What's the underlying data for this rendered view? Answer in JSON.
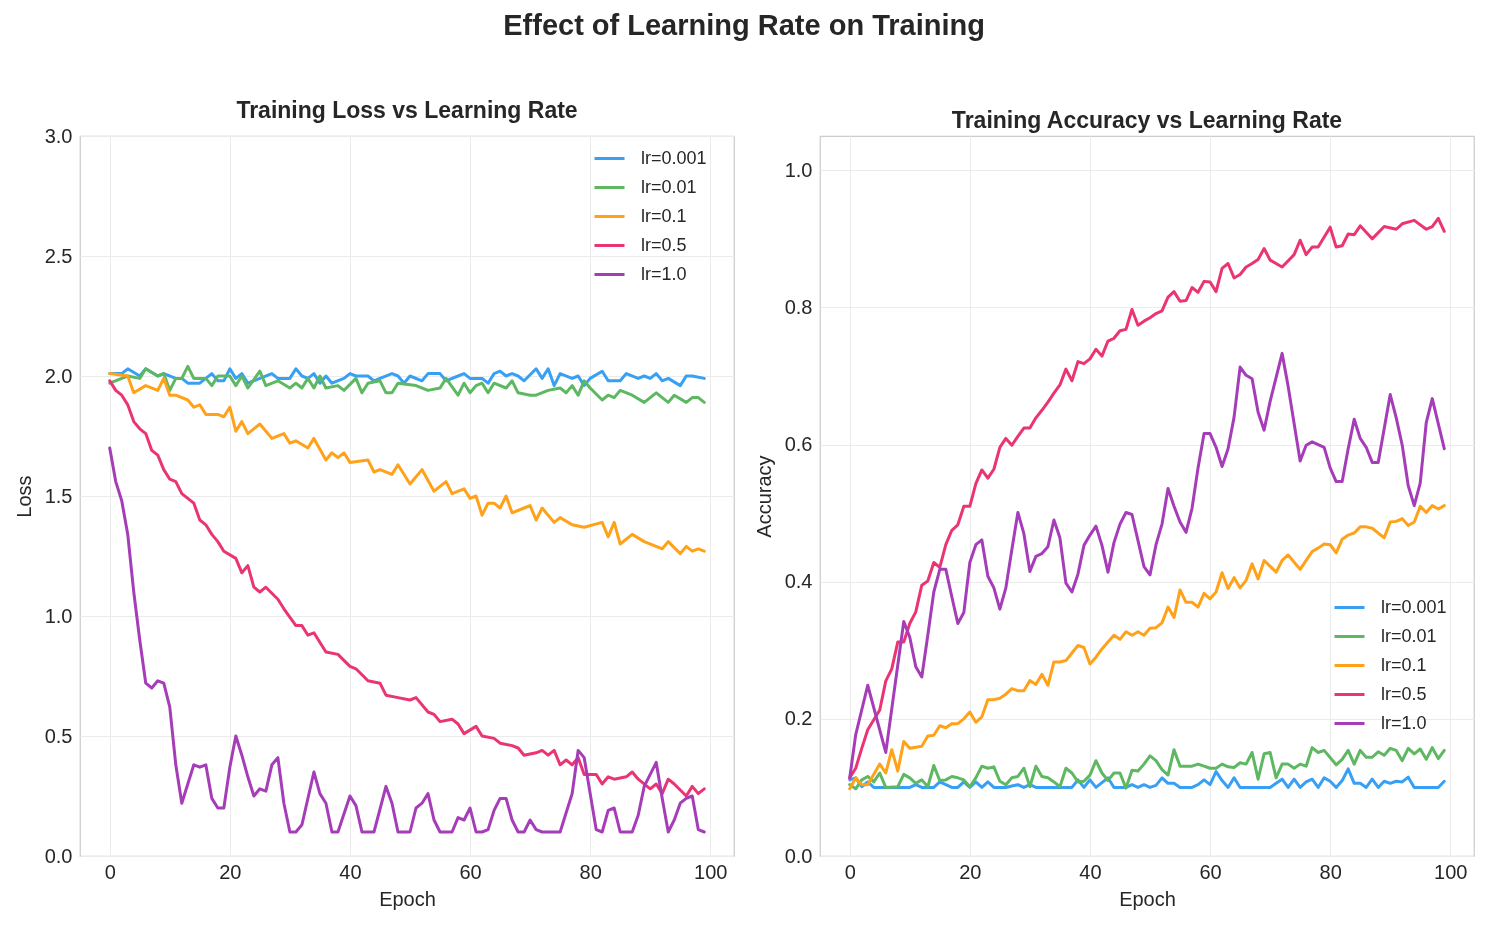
{
  "chart_data": [
    {
      "type": "other",
      "title": "Effect of Learning Rate on Training"
    },
    {
      "type": "line",
      "title": "Training Loss vs Learning Rate",
      "xlabel": "Epoch",
      "ylabel": "Loss",
      "xlim": [
        -4.95,
        103.95
      ],
      "xticks": [
        0,
        20,
        40,
        60,
        80,
        100
      ],
      "ylim": [
        0,
        3
      ],
      "yticks": [
        {
          "value": 0,
          "label": "0.0"
        },
        0.5,
        {
          "value": 1,
          "label": "1.0"
        },
        1.5,
        {
          "value": 2,
          "label": "2.0"
        },
        2.5,
        {
          "value": 3,
          "label": "3.0"
        }
      ],
      "grid": true,
      "legend": "top right",
      "series": [
        {
          "name": "lr=0.001",
          "color": "#37a0f4",
          "x": [
            0,
            2,
            3,
            5,
            6,
            8,
            9,
            11,
            12,
            13,
            15,
            16,
            17,
            18,
            19,
            20,
            21,
            22,
            23,
            25,
            27,
            28,
            30,
            31,
            32,
            33,
            34,
            35,
            36,
            37,
            39,
            40,
            41,
            43,
            44,
            45,
            47,
            48,
            49,
            50,
            52,
            53,
            55,
            56,
            58,
            59,
            60,
            62,
            63,
            64,
            65,
            66,
            67,
            68,
            69,
            71,
            72,
            73,
            74,
            75,
            77,
            78,
            79,
            80,
            82,
            83,
            85,
            86,
            88,
            89,
            90,
            91,
            92,
            93,
            95,
            96,
            97,
            99
          ],
          "values": [
            2.01,
            2.01,
            2.03,
            2.0,
            2.03,
            2.0,
            2.01,
            1.99,
            1.99,
            1.97,
            1.97,
            1.99,
            2.01,
            1.98,
            1.98,
            2.03,
            1.99,
            2.01,
            1.97,
            1.99,
            2.01,
            1.99,
            1.99,
            2.03,
            2.0,
            1.99,
            2.01,
            1.97,
            2.0,
            1.97,
            1.99,
            2.01,
            2.0,
            2.0,
            1.98,
            1.99,
            2.01,
            2.0,
            1.97,
            2.0,
            1.98,
            2.01,
            2.01,
            1.98,
            2.0,
            2.01,
            1.99,
            1.99,
            1.97,
            2.01,
            2.02,
            2.0,
            2.01,
            2.0,
            1.98,
            2.03,
            1.99,
            2.03,
            1.96,
            2.01,
            1.99,
            2.0,
            1.96,
            1.99,
            2.02,
            1.98,
            1.98,
            2.01,
            1.99,
            2.0,
            1.99,
            2.01,
            1.98,
            1.99,
            1.96,
            2.0,
            2.0,
            1.99
          ]
        },
        {
          "name": "lr=0.01",
          "color": "#5eb761",
          "x": [
            0,
            2,
            3,
            5,
            6,
            8,
            9,
            10,
            11,
            12,
            13,
            14,
            16,
            17,
            18,
            20,
            21,
            22,
            23,
            25,
            26,
            28,
            30,
            31,
            32,
            33,
            34,
            35,
            36,
            38,
            39,
            41,
            42,
            43,
            45,
            46,
            47,
            48,
            51,
            53,
            55,
            56,
            58,
            59,
            60,
            61,
            62,
            63,
            64,
            66,
            67,
            68,
            70,
            71,
            73,
            75,
            76,
            77,
            78,
            79,
            80,
            82,
            83,
            84,
            85,
            87,
            89,
            91,
            93,
            94,
            96,
            97,
            98,
            99
          ],
          "values": [
            1.97,
            1.99,
            2.0,
            1.99,
            2.03,
            2.0,
            2.01,
            1.94,
            1.99,
            1.99,
            2.04,
            1.99,
            1.99,
            1.96,
            2.0,
            2.0,
            1.96,
            2.0,
            1.95,
            2.02,
            1.96,
            1.98,
            1.95,
            1.97,
            1.95,
            1.99,
            1.95,
            2.0,
            1.95,
            1.96,
            1.94,
            1.99,
            1.93,
            1.97,
            1.98,
            1.93,
            1.93,
            1.97,
            1.96,
            1.94,
            1.95,
            1.99,
            1.92,
            1.97,
            1.93,
            1.96,
            1.97,
            1.93,
            1.97,
            1.95,
            1.98,
            1.93,
            1.92,
            1.92,
            1.94,
            1.95,
            1.93,
            1.96,
            1.92,
            1.98,
            1.95,
            1.9,
            1.92,
            1.91,
            1.94,
            1.92,
            1.89,
            1.93,
            1.89,
            1.92,
            1.89,
            1.91,
            1.91,
            1.89
          ]
        },
        {
          "name": "lr=0.1",
          "color": "#ffa21a",
          "x": [
            0,
            3,
            4,
            6,
            8,
            9,
            10,
            11,
            13,
            14,
            15,
            16,
            18,
            19,
            20,
            21,
            22,
            23,
            25,
            27,
            29,
            30,
            31,
            33,
            34,
            36,
            37,
            38,
            39,
            40,
            43,
            44,
            45,
            47,
            48,
            50,
            52,
            54,
            56,
            57,
            59,
            60,
            61,
            62,
            63,
            64,
            65,
            66,
            67,
            69,
            70,
            71,
            72,
            74,
            75,
            77,
            79,
            82,
            83,
            84,
            85,
            87,
            89,
            92,
            93,
            95,
            96,
            97,
            98,
            99
          ],
          "values": [
            2.01,
            2.0,
            1.93,
            1.96,
            1.94,
            1.99,
            1.92,
            1.92,
            1.9,
            1.87,
            1.88,
            1.84,
            1.84,
            1.83,
            1.87,
            1.77,
            1.81,
            1.76,
            1.8,
            1.74,
            1.76,
            1.72,
            1.73,
            1.7,
            1.74,
            1.65,
            1.68,
            1.66,
            1.68,
            1.64,
            1.65,
            1.6,
            1.61,
            1.59,
            1.63,
            1.55,
            1.61,
            1.52,
            1.56,
            1.51,
            1.53,
            1.49,
            1.5,
            1.42,
            1.47,
            1.47,
            1.45,
            1.5,
            1.43,
            1.45,
            1.46,
            1.4,
            1.45,
            1.39,
            1.41,
            1.38,
            1.37,
            1.39,
            1.33,
            1.39,
            1.3,
            1.34,
            1.31,
            1.28,
            1.31,
            1.26,
            1.29,
            1.27,
            1.28,
            1.27
          ]
        },
        {
          "name": "lr=0.5",
          "color": "#eb3473",
          "x": [
            0,
            1,
            2,
            3,
            4,
            5,
            6,
            7,
            8,
            9,
            10,
            11,
            12,
            14,
            15,
            16,
            17,
            18,
            19,
            21,
            22,
            23,
            24,
            25,
            26,
            28,
            29,
            31,
            32,
            33,
            34,
            36,
            38,
            40,
            41,
            43,
            45,
            46,
            48,
            50,
            51,
            53,
            54,
            55,
            57,
            58,
            59,
            61,
            62,
            64,
            65,
            67,
            68,
            69,
            71,
            72,
            73,
            74,
            75,
            76,
            77,
            78,
            79,
            81,
            82,
            83,
            84,
            86,
            87,
            88,
            90,
            91,
            92,
            93,
            94,
            96,
            97,
            98,
            99
          ],
          "values": [
            1.98,
            1.94,
            1.92,
            1.88,
            1.81,
            1.78,
            1.76,
            1.69,
            1.67,
            1.61,
            1.57,
            1.56,
            1.51,
            1.47,
            1.4,
            1.38,
            1.34,
            1.31,
            1.27,
            1.24,
            1.18,
            1.21,
            1.12,
            1.1,
            1.12,
            1.07,
            1.03,
            0.96,
            0.96,
            0.92,
            0.93,
            0.85,
            0.84,
            0.79,
            0.78,
            0.73,
            0.72,
            0.67,
            0.66,
            0.65,
            0.66,
            0.6,
            0.59,
            0.56,
            0.57,
            0.55,
            0.51,
            0.54,
            0.5,
            0.49,
            0.47,
            0.46,
            0.45,
            0.42,
            0.43,
            0.44,
            0.42,
            0.44,
            0.38,
            0.4,
            0.38,
            0.41,
            0.34,
            0.34,
            0.3,
            0.33,
            0.32,
            0.33,
            0.35,
            0.32,
            0.28,
            0.3,
            0.26,
            0.32,
            0.3,
            0.25,
            0.29,
            0.26,
            0.28
          ]
        },
        {
          "name": "lr=1.0",
          "color": "#a63db8",
          "x": [
            0,
            1,
            2,
            3,
            4,
            5,
            6,
            7,
            8,
            9,
            10,
            11,
            12,
            13,
            14,
            15,
            16,
            17,
            18,
            19,
            20,
            21,
            22,
            23,
            24,
            25,
            26,
            27,
            28,
            29,
            30,
            31,
            32,
            34,
            35,
            36,
            37,
            38,
            40,
            41,
            42,
            44,
            46,
            47,
            48,
            50,
            51,
            52,
            53,
            54,
            55,
            57,
            58,
            59,
            60,
            61,
            62,
            63,
            64,
            65,
            66,
            67,
            68,
            69,
            70,
            71,
            72,
            75,
            76,
            77,
            78,
            79,
            80,
            81,
            82,
            83,
            84,
            85,
            87,
            88,
            89,
            90,
            91,
            92,
            93,
            94,
            95,
            96,
            97,
            98,
            99
          ],
          "values": [
            1.7,
            1.56,
            1.48,
            1.34,
            1.1,
            0.9,
            0.72,
            0.7,
            0.73,
            0.72,
            0.62,
            0.38,
            0.22,
            0.3,
            0.38,
            0.37,
            0.38,
            0.24,
            0.2,
            0.2,
            0.37,
            0.5,
            0.42,
            0.33,
            0.25,
            0.28,
            0.27,
            0.38,
            0.41,
            0.22,
            0.1,
            0.1,
            0.13,
            0.35,
            0.26,
            0.22,
            0.1,
            0.1,
            0.25,
            0.21,
            0.1,
            0.1,
            0.29,
            0.22,
            0.1,
            0.1,
            0.2,
            0.22,
            0.26,
            0.15,
            0.1,
            0.1,
            0.16,
            0.15,
            0.2,
            0.1,
            0.1,
            0.11,
            0.19,
            0.24,
            0.24,
            0.15,
            0.1,
            0.1,
            0.15,
            0.11,
            0.1,
            0.1,
            0.18,
            0.26,
            0.44,
            0.41,
            0.26,
            0.11,
            0.1,
            0.19,
            0.2,
            0.1,
            0.1,
            0.17,
            0.29,
            0.34,
            0.39,
            0.24,
            0.1,
            0.15,
            0.22,
            0.24,
            0.25,
            0.11,
            0.1
          ]
        }
      ]
    },
    {
      "type": "line",
      "title": "Training Accuracy vs Learning Rate",
      "xlabel": "Epoch",
      "ylabel": "Accuracy",
      "xlim": [
        -4.95,
        103.95
      ],
      "xticks": [
        0,
        20,
        40,
        60,
        80,
        100
      ],
      "ylim": [
        0,
        1.05
      ],
      "yticks": [
        {
          "value": 0,
          "label": "0.0"
        },
        0.2,
        0.4,
        0.6,
        0.8,
        {
          "value": 1,
          "label": "1.0"
        }
      ],
      "grid": true,
      "legend": "bottom right",
      "series": [
        {
          "name": "lr=0.001",
          "color": "#37a0f4",
          "x": [
            0,
            1,
            2,
            3,
            4,
            8,
            10,
            11,
            12,
            14,
            15,
            16,
            17,
            18,
            19,
            20,
            21,
            22,
            23,
            24,
            26,
            27,
            28,
            29,
            30,
            31,
            34,
            37,
            38,
            39,
            40,
            41,
            43,
            44,
            46,
            47,
            48,
            49,
            50,
            51,
            52,
            53,
            54,
            55,
            57,
            58,
            59,
            60,
            61,
            62,
            63,
            64,
            65,
            70,
            71,
            72,
            73,
            74,
            75,
            76,
            77,
            78,
            79,
            80,
            81,
            82,
            83,
            84,
            85,
            86,
            87,
            88,
            89,
            90,
            91,
            92,
            93,
            94,
            98,
            99
          ],
          "values": [
            0.111,
            0.114,
            0.101,
            0.108,
            0.1,
            0.1,
            0.1,
            0.104,
            0.1,
            0.1,
            0.108,
            0.104,
            0.1,
            0.1,
            0.108,
            0.1,
            0.108,
            0.1,
            0.108,
            0.1,
            0.1,
            0.102,
            0.104,
            0.1,
            0.104,
            0.1,
            0.1,
            0.1,
            0.111,
            0.1,
            0.111,
            0.1,
            0.114,
            0.1,
            0.1,
            0.104,
            0.1,
            0.104,
            0.1,
            0.103,
            0.114,
            0.106,
            0.106,
            0.1,
            0.1,
            0.104,
            0.111,
            0.104,
            0.123,
            0.11,
            0.1,
            0.114,
            0.1,
            0.1,
            0.106,
            0.112,
            0.1,
            0.112,
            0.1,
            0.108,
            0.112,
            0.1,
            0.114,
            0.109,
            0.1,
            0.11,
            0.127,
            0.106,
            0.106,
            0.1,
            0.112,
            0.1,
            0.109,
            0.106,
            0.109,
            0.108,
            0.115,
            0.1,
            0.1,
            0.109
          ]
        },
        {
          "name": "lr=0.01",
          "color": "#5eb761",
          "x": [
            0,
            1,
            2,
            3,
            4,
            5,
            6,
            8,
            9,
            10,
            11,
            12,
            13,
            14,
            15,
            16,
            17,
            18,
            19,
            20,
            21,
            22,
            23,
            24,
            25,
            26,
            27,
            28,
            29,
            30,
            31,
            32,
            33,
            34,
            35,
            36,
            37,
            38,
            39,
            40,
            41,
            42,
            43,
            44,
            45,
            46,
            47,
            48,
            49,
            50,
            51,
            52,
            53,
            54,
            55,
            56,
            57,
            58,
            59,
            60,
            61,
            62,
            63,
            64,
            65,
            66,
            67,
            68,
            69,
            70,
            71,
            72,
            73,
            74,
            75,
            76,
            77,
            78,
            79,
            81,
            82,
            83,
            84,
            85,
            86,
            87,
            88,
            89,
            90,
            91,
            92,
            93,
            94,
            95,
            96,
            97,
            98,
            99
          ],
          "values": [
            0.104,
            0.098,
            0.111,
            0.116,
            0.108,
            0.121,
            0.1,
            0.101,
            0.119,
            0.114,
            0.106,
            0.111,
            0.101,
            0.132,
            0.11,
            0.111,
            0.116,
            0.114,
            0.111,
            0.101,
            0.114,
            0.131,
            0.128,
            0.13,
            0.109,
            0.104,
            0.114,
            0.116,
            0.128,
            0.101,
            0.131,
            0.116,
            0.114,
            0.108,
            0.101,
            0.128,
            0.121,
            0.108,
            0.109,
            0.118,
            0.139,
            0.121,
            0.11,
            0.121,
            0.121,
            0.099,
            0.125,
            0.124,
            0.134,
            0.146,
            0.139,
            0.126,
            0.118,
            0.155,
            0.131,
            0.131,
            0.131,
            0.134,
            0.131,
            0.128,
            0.128,
            0.134,
            0.13,
            0.129,
            0.136,
            0.134,
            0.151,
            0.112,
            0.149,
            0.151,
            0.114,
            0.134,
            0.134,
            0.128,
            0.134,
            0.131,
            0.158,
            0.151,
            0.154,
            0.133,
            0.141,
            0.154,
            0.134,
            0.154,
            0.144,
            0.144,
            0.152,
            0.147,
            0.157,
            0.154,
            0.139,
            0.157,
            0.149,
            0.156,
            0.141,
            0.158,
            0.142,
            0.154
          ]
        },
        {
          "name": "lr=0.1",
          "color": "#ffa21a",
          "x": [
            0,
            1,
            2,
            3,
            5,
            6,
            7,
            8,
            9,
            10,
            12,
            13,
            14,
            15,
            16,
            17,
            18,
            19,
            20,
            21,
            22,
            23,
            24,
            25,
            26,
            27,
            28,
            29,
            30,
            31,
            32,
            33,
            34,
            35,
            36,
            37,
            38,
            39,
            40,
            41,
            42,
            43,
            44,
            45,
            46,
            47,
            48,
            49,
            50,
            51,
            52,
            53,
            54,
            55,
            56,
            57,
            58,
            59,
            60,
            61,
            62,
            63,
            64,
            65,
            66,
            67,
            68,
            69,
            71,
            72,
            73,
            75,
            76,
            77,
            78,
            79,
            80,
            81,
            82,
            83,
            84,
            85,
            86,
            87,
            89,
            90,
            91,
            92,
            93,
            94,
            95,
            96,
            97,
            98,
            99
          ],
          "values": [
            0.098,
            0.114,
            0.104,
            0.104,
            0.134,
            0.121,
            0.155,
            0.124,
            0.167,
            0.157,
            0.16,
            0.175,
            0.176,
            0.19,
            0.187,
            0.193,
            0.193,
            0.2,
            0.21,
            0.195,
            0.203,
            0.228,
            0.228,
            0.23,
            0.236,
            0.244,
            0.241,
            0.241,
            0.256,
            0.25,
            0.265,
            0.249,
            0.283,
            0.283,
            0.285,
            0.296,
            0.307,
            0.304,
            0.28,
            0.29,
            0.302,
            0.312,
            0.322,
            0.316,
            0.327,
            0.322,
            0.327,
            0.322,
            0.332,
            0.333,
            0.34,
            0.363,
            0.348,
            0.388,
            0.37,
            0.37,
            0.363,
            0.383,
            0.375,
            0.385,
            0.413,
            0.39,
            0.406,
            0.391,
            0.402,
            0.426,
            0.404,
            0.431,
            0.414,
            0.431,
            0.439,
            0.418,
            0.431,
            0.444,
            0.449,
            0.455,
            0.454,
            0.442,
            0.462,
            0.468,
            0.471,
            0.48,
            0.48,
            0.478,
            0.464,
            0.487,
            0.488,
            0.492,
            0.482,
            0.487,
            0.51,
            0.501,
            0.511,
            0.506,
            0.511
          ]
        },
        {
          "name": "lr=0.5",
          "color": "#eb3473",
          "x": [
            0,
            1,
            2,
            3,
            5,
            6,
            7,
            8,
            9,
            10,
            11,
            12,
            13,
            14,
            15,
            16,
            17,
            18,
            19,
            20,
            21,
            22,
            23,
            24,
            25,
            26,
            27,
            28,
            29,
            30,
            31,
            32,
            33,
            34,
            35,
            36,
            37,
            38,
            39,
            40,
            41,
            42,
            43,
            44,
            45,
            46,
            47,
            48,
            49,
            50,
            51,
            52,
            53,
            54,
            55,
            56,
            57,
            58,
            59,
            60,
            61,
            62,
            63,
            64,
            65,
            66,
            67,
            68,
            69,
            70,
            72,
            74,
            75,
            76,
            77,
            78,
            80,
            81,
            82,
            83,
            84,
            85,
            87,
            89,
            91,
            92,
            94,
            96,
            97,
            98,
            99
          ],
          "values": [
            0.114,
            0.128,
            0.157,
            0.184,
            0.213,
            0.255,
            0.273,
            0.312,
            0.312,
            0.339,
            0.356,
            0.395,
            0.401,
            0.428,
            0.421,
            0.454,
            0.475,
            0.483,
            0.51,
            0.51,
            0.543,
            0.563,
            0.551,
            0.564,
            0.596,
            0.609,
            0.599,
            0.612,
            0.624,
            0.624,
            0.639,
            0.65,
            0.662,
            0.675,
            0.687,
            0.71,
            0.693,
            0.721,
            0.718,
            0.725,
            0.739,
            0.729,
            0.751,
            0.755,
            0.766,
            0.768,
            0.797,
            0.774,
            0.78,
            0.785,
            0.791,
            0.795,
            0.815,
            0.823,
            0.809,
            0.81,
            0.829,
            0.822,
            0.838,
            0.837,
            0.823,
            0.857,
            0.864,
            0.843,
            0.848,
            0.859,
            0.864,
            0.87,
            0.886,
            0.869,
            0.859,
            0.877,
            0.898,
            0.877,
            0.888,
            0.888,
            0.917,
            0.888,
            0.89,
            0.907,
            0.906,
            0.919,
            0.9,
            0.918,
            0.914,
            0.922,
            0.927,
            0.914,
            0.918,
            0.93,
            0.911
          ]
        },
        {
          "name": "lr=1.0",
          "color": "#a63db8",
          "x": [
            0,
            1,
            3,
            6,
            9,
            10,
            11,
            12,
            13,
            14,
            15,
            16,
            17,
            18,
            19,
            20,
            21,
            22,
            23,
            24,
            25,
            26,
            27,
            28,
            29,
            30,
            31,
            32,
            33,
            34,
            35,
            36,
            37,
            38,
            39,
            40,
            41,
            42,
            43,
            44,
            45,
            46,
            47,
            48,
            49,
            50,
            51,
            52,
            53,
            54,
            55,
            56,
            57,
            58,
            59,
            60,
            61,
            62,
            63,
            64,
            65,
            66,
            67,
            68,
            69,
            70,
            72,
            73,
            75,
            76,
            77,
            79,
            80,
            81,
            82,
            83,
            84,
            85,
            86,
            87,
            88,
            90,
            91,
            92,
            93,
            94,
            95,
            96,
            97,
            99
          ],
          "values": [
            0.114,
            0.177,
            0.249,
            0.151,
            0.342,
            0.319,
            0.276,
            0.261,
            0.322,
            0.385,
            0.418,
            0.418,
            0.378,
            0.339,
            0.355,
            0.428,
            0.454,
            0.461,
            0.408,
            0.391,
            0.36,
            0.391,
            0.447,
            0.501,
            0.47,
            0.415,
            0.437,
            0.441,
            0.451,
            0.49,
            0.464,
            0.398,
            0.385,
            0.411,
            0.453,
            0.468,
            0.481,
            0.453,
            0.414,
            0.457,
            0.484,
            0.501,
            0.498,
            0.46,
            0.422,
            0.41,
            0.454,
            0.484,
            0.536,
            0.51,
            0.487,
            0.472,
            0.507,
            0.566,
            0.616,
            0.616,
            0.596,
            0.568,
            0.594,
            0.64,
            0.713,
            0.701,
            0.696,
            0.647,
            0.621,
            0.663,
            0.733,
            0.685,
            0.576,
            0.599,
            0.604,
            0.596,
            0.566,
            0.546,
            0.546,
            0.594,
            0.637,
            0.609,
            0.596,
            0.574,
            0.574,
            0.673,
            0.639,
            0.599,
            0.54,
            0.511,
            0.544,
            0.632,
            0.667,
            0.594
          ]
        }
      ]
    }
  ]
}
